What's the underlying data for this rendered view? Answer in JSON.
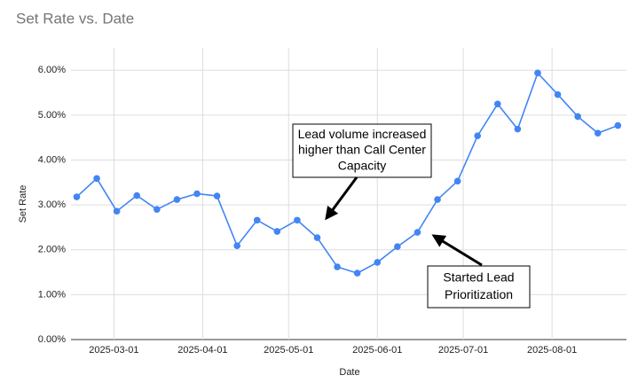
{
  "chart_data": {
    "type": "line",
    "title": "Set Rate vs. Date",
    "x_label": "Date",
    "y_label": "Set Rate",
    "x": [
      "2025-02-16",
      "2025-02-23",
      "2025-03-02",
      "2025-03-09",
      "2025-03-16",
      "2025-03-23",
      "2025-03-30",
      "2025-04-06",
      "2025-04-13",
      "2025-04-20",
      "2025-04-27",
      "2025-05-04",
      "2025-05-11",
      "2025-05-18",
      "2025-05-25",
      "2025-06-01",
      "2025-06-08",
      "2025-06-15",
      "2025-06-22",
      "2025-06-29",
      "2025-07-06",
      "2025-07-13",
      "2025-07-20",
      "2025-07-27",
      "2025-08-03",
      "2025-08-10",
      "2025-08-17",
      "2025-08-24"
    ],
    "series": [
      {
        "name": "Set Rate",
        "color": "#4285f4",
        "values": [
          3.18,
          3.59,
          2.86,
          3.21,
          2.9,
          3.12,
          3.25,
          3.2,
          2.09,
          2.66,
          2.41,
          2.66,
          2.27,
          1.62,
          1.48,
          1.72,
          2.07,
          2.39,
          3.12,
          3.53,
          4.54,
          5.25,
          4.69,
          5.94,
          5.46,
          4.97,
          4.6,
          4.77
        ]
      }
    ],
    "xlim": [
      "2025-02-14",
      "2025-08-27"
    ],
    "xticks": [
      "2025-03-01",
      "2025-04-01",
      "2025-05-01",
      "2025-06-01",
      "2025-07-01",
      "2025-08-01"
    ],
    "ylim": [
      0,
      6.5
    ],
    "yticks": [
      {
        "value": 0,
        "label": "0.00%"
      },
      {
        "value": 1,
        "label": "1.00%"
      },
      {
        "value": 2,
        "label": "2.00%"
      },
      {
        "value": 3,
        "label": "3.00%"
      },
      {
        "value": 4,
        "label": "4.00%"
      },
      {
        "value": 5,
        "label": "5.00%"
      },
      {
        "value": 6,
        "label": "6.00%"
      }
    ],
    "grid": true,
    "annotations": [
      {
        "lines": [
          "Lead volume increased",
          "higher than Call Center",
          "Capacity"
        ]
      },
      {
        "lines": [
          "Started Lead",
          "Prioritization"
        ]
      }
    ]
  }
}
